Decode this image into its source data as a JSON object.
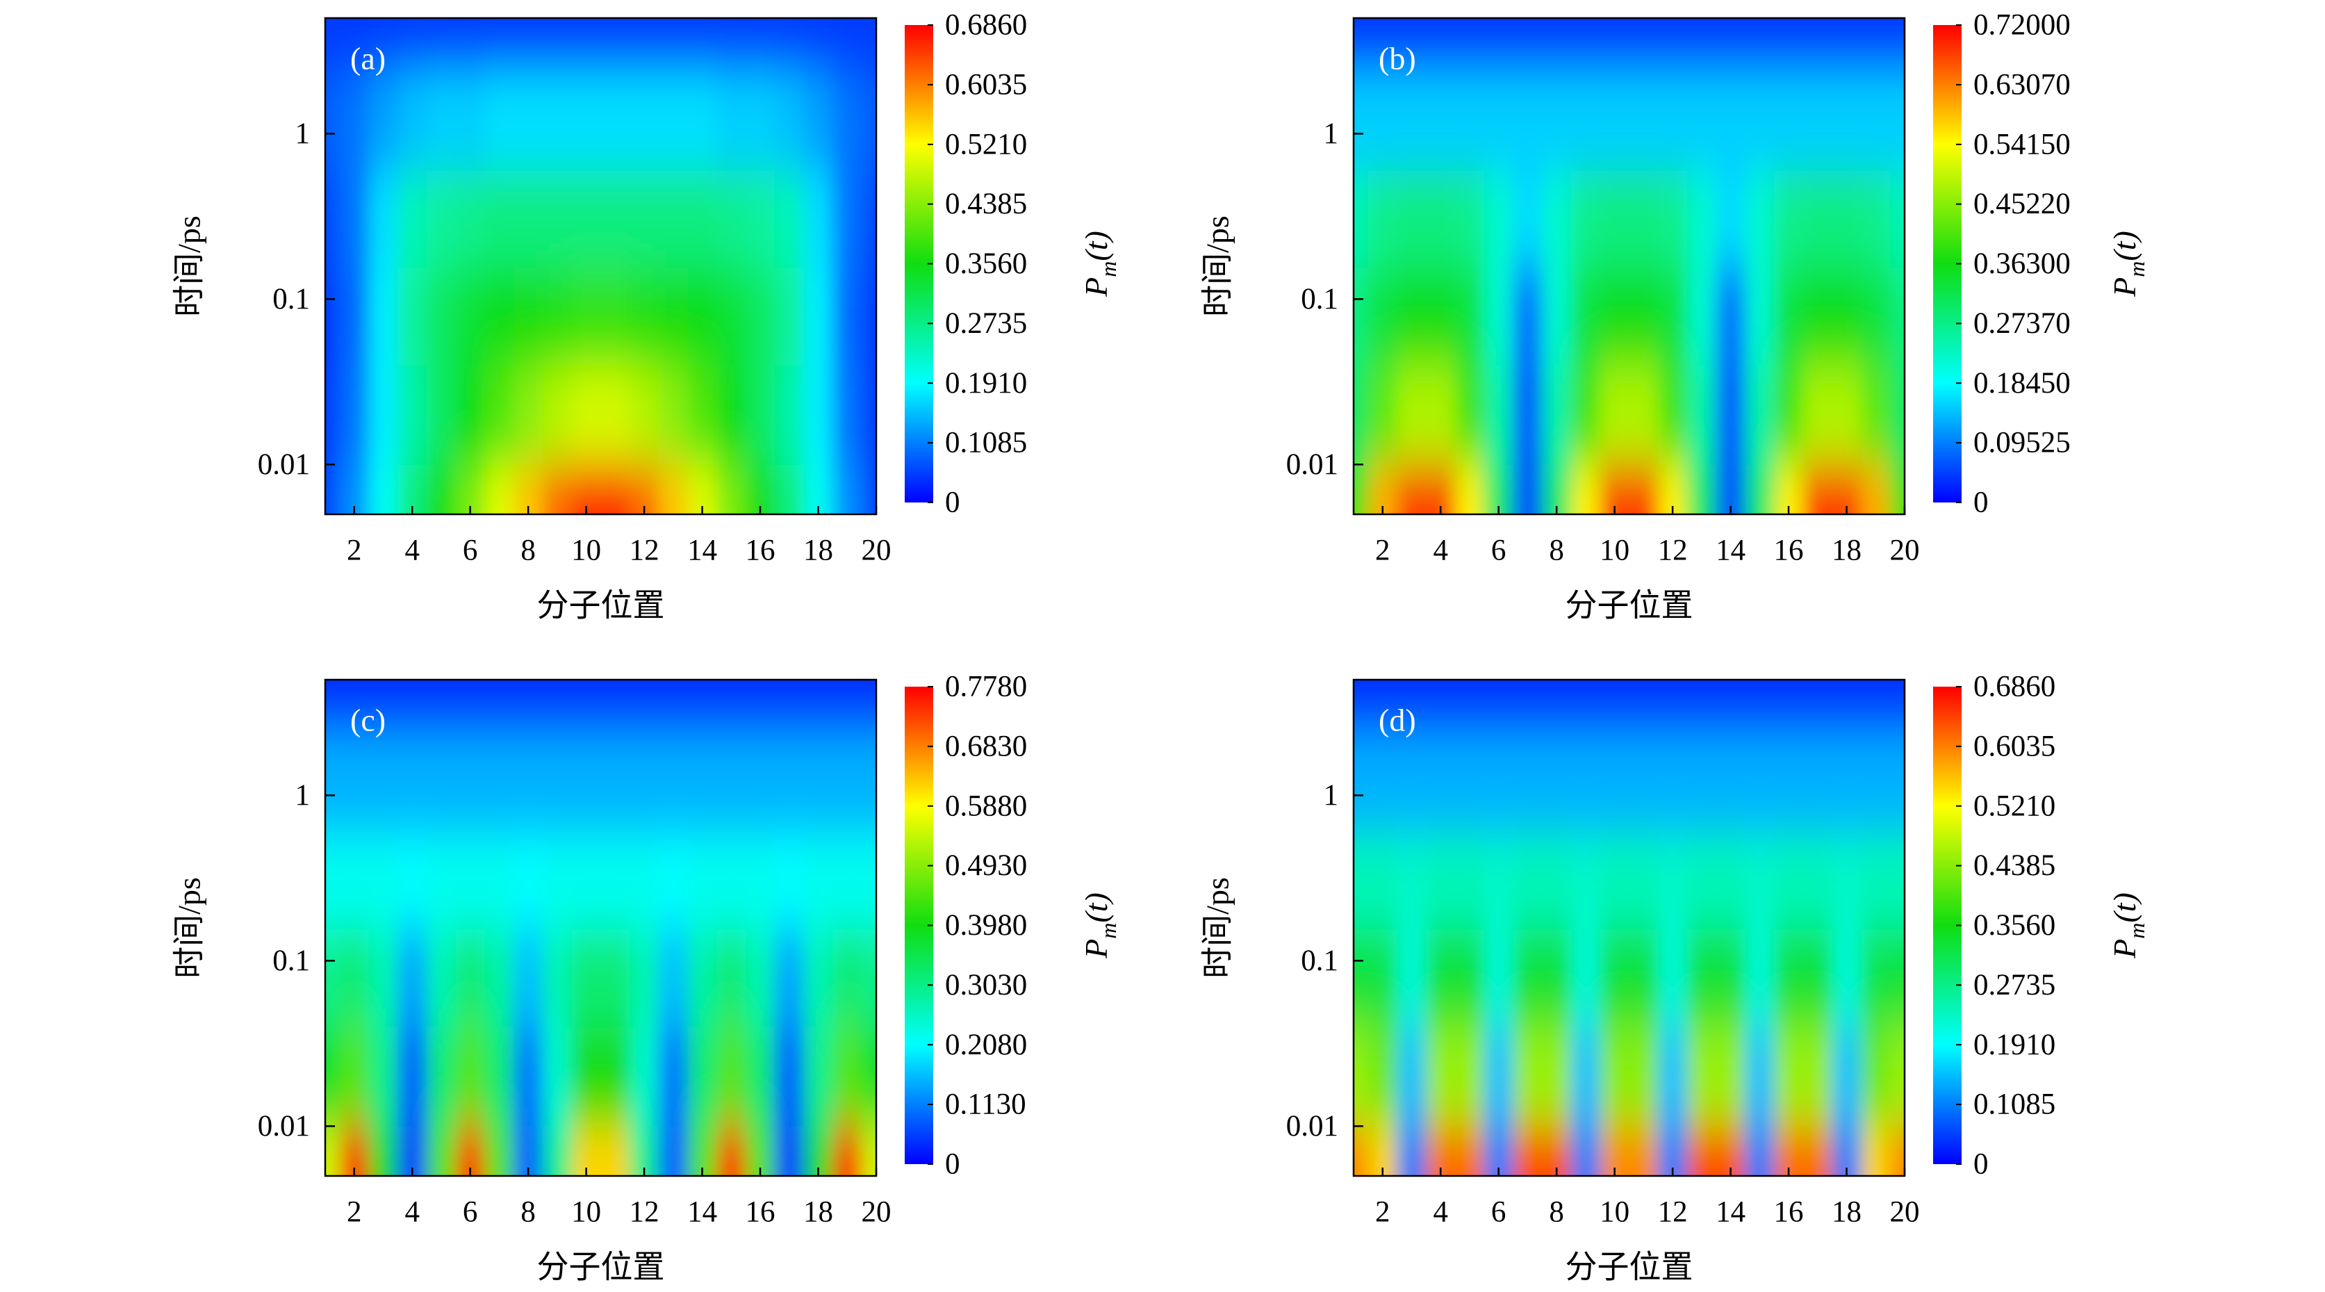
{
  "chart_data": [
    {
      "type": "contour",
      "label": "(a)",
      "xlabel": "分子位置",
      "ylabel": "时间/ps",
      "colorbar_label": {
        "base": "P",
        "sub": "m",
        "rest": "(t)"
      },
      "x": [
        1,
        2,
        3,
        4,
        5,
        6,
        7,
        8,
        9,
        10,
        11,
        12,
        13,
        14,
        15,
        16,
        17,
        18,
        19,
        20
      ],
      "y": [
        0.005,
        0.02,
        0.08,
        0.3,
        1.2,
        5
      ],
      "z": [
        [
          0.06,
          0.12,
          0.2,
          0.28,
          0.36,
          0.43,
          0.5,
          0.56,
          0.62,
          0.66,
          0.66,
          0.62,
          0.56,
          0.5,
          0.43,
          0.36,
          0.28,
          0.2,
          0.12,
          0.06
        ],
        [
          0.05,
          0.1,
          0.18,
          0.25,
          0.3,
          0.35,
          0.4,
          0.44,
          0.47,
          0.49,
          0.49,
          0.47,
          0.44,
          0.4,
          0.35,
          0.3,
          0.25,
          0.18,
          0.1,
          0.05
        ],
        [
          0.05,
          0.09,
          0.18,
          0.26,
          0.3,
          0.33,
          0.35,
          0.36,
          0.37,
          0.38,
          0.38,
          0.37,
          0.36,
          0.35,
          0.33,
          0.3,
          0.26,
          0.18,
          0.09,
          0.05
        ],
        [
          0.06,
          0.1,
          0.17,
          0.24,
          0.26,
          0.27,
          0.28,
          0.28,
          0.28,
          0.28,
          0.28,
          0.28,
          0.28,
          0.28,
          0.27,
          0.26,
          0.24,
          0.17,
          0.1,
          0.06
        ],
        [
          0.08,
          0.1,
          0.13,
          0.15,
          0.16,
          0.16,
          0.17,
          0.17,
          0.17,
          0.17,
          0.17,
          0.17,
          0.17,
          0.17,
          0.16,
          0.16,
          0.15,
          0.13,
          0.1,
          0.08
        ],
        [
          0.05,
          0.05,
          0.05,
          0.05,
          0.05,
          0.05,
          0.05,
          0.05,
          0.05,
          0.05,
          0.05,
          0.05,
          0.05,
          0.05,
          0.05,
          0.05,
          0.05,
          0.05,
          0.05,
          0.05
        ]
      ],
      "xlim": [
        1,
        20
      ],
      "ylim": [
        0.005,
        5
      ],
      "log_y": true,
      "xticks": [
        2,
        4,
        6,
        8,
        10,
        12,
        14,
        16,
        18,
        20
      ],
      "yticks": [
        0.01,
        0.1,
        1
      ],
      "colors": [
        "#0000ff",
        "#00ffff",
        "#10dd10",
        "#ffff00",
        "#ff0000"
      ],
      "cbar_ticks": [
        0,
        0.1085,
        {
          "value": 0.191,
          "label": "0.1910"
        },
        0.2735,
        {
          "value": 0.356,
          "label": "0.3560"
        },
        0.4385,
        {
          "value": 0.521,
          "label": "0.5210"
        },
        0.6035,
        {
          "value": 0.686,
          "label": "0.6860"
        }
      ]
    },
    {
      "type": "contour",
      "label": "(b)",
      "xlabel": "分子位置",
      "ylabel": "时间/ps",
      "colorbar_label": {
        "base": "P",
        "sub": "m",
        "rest": "(t)"
      },
      "x": [
        1,
        2,
        3,
        4,
        5,
        6,
        7,
        8,
        9,
        10,
        11,
        12,
        13,
        14,
        15,
        16,
        17,
        18,
        19,
        20
      ],
      "y": [
        0.005,
        0.02,
        0.08,
        0.3,
        1.2,
        5
      ],
      "z": [
        [
          0.4,
          0.6,
          0.68,
          0.68,
          0.55,
          0.3,
          0.05,
          0.3,
          0.55,
          0.68,
          0.68,
          0.55,
          0.3,
          0.05,
          0.3,
          0.55,
          0.68,
          0.68,
          0.6,
          0.4
        ],
        [
          0.3,
          0.42,
          0.48,
          0.48,
          0.4,
          0.25,
          0.06,
          0.25,
          0.4,
          0.48,
          0.48,
          0.4,
          0.25,
          0.06,
          0.25,
          0.4,
          0.48,
          0.48,
          0.42,
          0.3
        ],
        [
          0.28,
          0.33,
          0.36,
          0.36,
          0.33,
          0.22,
          0.08,
          0.22,
          0.33,
          0.36,
          0.36,
          0.33,
          0.22,
          0.08,
          0.22,
          0.33,
          0.36,
          0.36,
          0.33,
          0.28
        ],
        [
          0.24,
          0.27,
          0.28,
          0.28,
          0.27,
          0.22,
          0.16,
          0.22,
          0.27,
          0.28,
          0.28,
          0.27,
          0.22,
          0.16,
          0.22,
          0.27,
          0.28,
          0.28,
          0.27,
          0.24
        ],
        [
          0.15,
          0.15,
          0.15,
          0.15,
          0.15,
          0.15,
          0.15,
          0.15,
          0.15,
          0.15,
          0.15,
          0.15,
          0.15,
          0.15,
          0.15,
          0.15,
          0.15,
          0.15,
          0.15,
          0.15
        ],
        [
          0.04,
          0.04,
          0.04,
          0.04,
          0.04,
          0.04,
          0.04,
          0.04,
          0.04,
          0.04,
          0.04,
          0.04,
          0.04,
          0.04,
          0.04,
          0.04,
          0.04,
          0.04,
          0.04,
          0.04
        ]
      ],
      "xlim": [
        1,
        20
      ],
      "ylim": [
        0.005,
        5
      ],
      "log_y": true,
      "xticks": [
        2,
        4,
        6,
        8,
        10,
        12,
        14,
        16,
        18,
        20
      ],
      "yticks": [
        0.01,
        0.1,
        1
      ],
      "colors": [
        "#0000ff",
        "#00ffff",
        "#10dd10",
        "#ffff00",
        "#ff0000"
      ],
      "cbar_ticks": [
        0,
        0.09525,
        {
          "value": 0.1845,
          "label": "0.18450"
        },
        {
          "value": 0.2737,
          "label": "0.27370"
        },
        {
          "value": 0.363,
          "label": "0.36300"
        },
        {
          "value": 0.4522,
          "label": "0.45220"
        },
        {
          "value": 0.5415,
          "label": "0.54150"
        },
        {
          "value": 0.6307,
          "label": "0.63070"
        },
        {
          "value": 0.72,
          "label": "0.72000"
        }
      ]
    },
    {
      "type": "contour",
      "label": "(c)",
      "xlabel": "分子位置",
      "ylabel": "时间/ps",
      "colorbar_label": {
        "base": "P",
        "sub": "m",
        "rest": "(t)"
      },
      "x": [
        1,
        2,
        3,
        4,
        5,
        6,
        7,
        8,
        9,
        10,
        11,
        12,
        13,
        14,
        15,
        16,
        17,
        18,
        19,
        20
      ],
      "y": [
        0.005,
        0.02,
        0.08,
        0.3,
        1.2,
        5
      ],
      "z": [
        [
          0.55,
          0.75,
          0.4,
          0.05,
          0.45,
          0.75,
          0.45,
          0.08,
          0.3,
          0.62,
          0.62,
          0.3,
          0.08,
          0.45,
          0.75,
          0.45,
          0.05,
          0.4,
          0.75,
          0.55
        ],
        [
          0.38,
          0.45,
          0.3,
          0.08,
          0.32,
          0.45,
          0.32,
          0.1,
          0.25,
          0.4,
          0.4,
          0.25,
          0.1,
          0.32,
          0.45,
          0.32,
          0.08,
          0.3,
          0.45,
          0.38
        ],
        [
          0.3,
          0.32,
          0.27,
          0.14,
          0.27,
          0.32,
          0.28,
          0.16,
          0.27,
          0.32,
          0.32,
          0.27,
          0.16,
          0.28,
          0.32,
          0.27,
          0.14,
          0.27,
          0.32,
          0.3
        ],
        [
          0.22,
          0.22,
          0.22,
          0.21,
          0.22,
          0.22,
          0.22,
          0.21,
          0.22,
          0.22,
          0.22,
          0.22,
          0.21,
          0.22,
          0.22,
          0.22,
          0.21,
          0.22,
          0.22,
          0.22
        ],
        [
          0.15,
          0.15,
          0.15,
          0.15,
          0.15,
          0.15,
          0.15,
          0.15,
          0.15,
          0.15,
          0.15,
          0.15,
          0.15,
          0.15,
          0.15,
          0.15,
          0.15,
          0.15,
          0.15,
          0.15
        ],
        [
          0.04,
          0.04,
          0.04,
          0.04,
          0.04,
          0.04,
          0.04,
          0.04,
          0.04,
          0.04,
          0.04,
          0.04,
          0.04,
          0.04,
          0.04,
          0.04,
          0.04,
          0.04,
          0.04,
          0.04
        ]
      ],
      "xlim": [
        1,
        20
      ],
      "ylim": [
        0.005,
        5
      ],
      "log_y": true,
      "xticks": [
        2,
        4,
        6,
        8,
        10,
        12,
        14,
        16,
        18,
        20
      ],
      "yticks": [
        0.01,
        0.1,
        1
      ],
      "colors": [
        "#0000ff",
        "#00ffff",
        "#10dd10",
        "#ffff00",
        "#ff0000"
      ],
      "cbar_ticks": [
        0,
        {
          "value": 0.113,
          "label": "0.1130"
        },
        {
          "value": 0.208,
          "label": "0.2080"
        },
        {
          "value": 0.303,
          "label": "0.3030"
        },
        {
          "value": 0.398,
          "label": "0.3980"
        },
        {
          "value": 0.493,
          "label": "0.4930"
        },
        {
          "value": 0.588,
          "label": "0.5880"
        },
        {
          "value": 0.683,
          "label": "0.6830"
        },
        {
          "value": 0.778,
          "label": "0.7780"
        }
      ]
    },
    {
      "type": "contour",
      "label": "(d)",
      "xlabel": "分子位置",
      "ylabel": "时间/ps",
      "colorbar_label": {
        "base": "P",
        "sub": "m",
        "rest": "(t)"
      },
      "x": [
        1,
        2,
        3,
        4,
        5,
        6,
        7,
        8,
        9,
        10,
        11,
        12,
        13,
        14,
        15,
        16,
        17,
        18,
        19,
        20
      ],
      "y": [
        0.005,
        0.02,
        0.08,
        0.3,
        1.2,
        5
      ],
      "z": [
        [
          0.6,
          0.55,
          0.1,
          0.62,
          0.62,
          0.1,
          0.64,
          0.64,
          0.1,
          0.6,
          0.6,
          0.1,
          0.64,
          0.64,
          0.1,
          0.62,
          0.62,
          0.1,
          0.55,
          0.6
        ],
        [
          0.45,
          0.42,
          0.15,
          0.45,
          0.45,
          0.15,
          0.45,
          0.45,
          0.15,
          0.44,
          0.44,
          0.15,
          0.45,
          0.45,
          0.15,
          0.45,
          0.45,
          0.15,
          0.42,
          0.45
        ],
        [
          0.33,
          0.32,
          0.22,
          0.33,
          0.33,
          0.22,
          0.33,
          0.33,
          0.22,
          0.33,
          0.33,
          0.22,
          0.33,
          0.33,
          0.22,
          0.33,
          0.33,
          0.22,
          0.32,
          0.33
        ],
        [
          0.24,
          0.24,
          0.23,
          0.24,
          0.24,
          0.23,
          0.24,
          0.24,
          0.23,
          0.24,
          0.24,
          0.23,
          0.24,
          0.24,
          0.23,
          0.24,
          0.24,
          0.23,
          0.24,
          0.24
        ],
        [
          0.14,
          0.14,
          0.14,
          0.14,
          0.14,
          0.14,
          0.14,
          0.14,
          0.14,
          0.14,
          0.14,
          0.14,
          0.14,
          0.14,
          0.14,
          0.14,
          0.14,
          0.14,
          0.14,
          0.14
        ],
        [
          0.04,
          0.04,
          0.04,
          0.04,
          0.04,
          0.04,
          0.04,
          0.04,
          0.04,
          0.04,
          0.04,
          0.04,
          0.04,
          0.04,
          0.04,
          0.04,
          0.04,
          0.04,
          0.04,
          0.04
        ]
      ],
      "xlim": [
        1,
        20
      ],
      "ylim": [
        0.005,
        5
      ],
      "log_y": true,
      "xticks": [
        2,
        4,
        6,
        8,
        10,
        12,
        14,
        16,
        18,
        20
      ],
      "yticks": [
        0.01,
        0.1,
        1
      ],
      "colors": [
        "#0000ff",
        "#00ffff",
        "#10dd10",
        "#ffff00",
        "#ff0000"
      ],
      "cbar_ticks": [
        0,
        0.1085,
        {
          "value": 0.191,
          "label": "0.1910"
        },
        0.2735,
        {
          "value": 0.356,
          "label": "0.3560"
        },
        0.4385,
        {
          "value": 0.521,
          "label": "0.5210"
        },
        0.6035,
        {
          "value": 0.686,
          "label": "0.6860"
        }
      ]
    }
  ]
}
